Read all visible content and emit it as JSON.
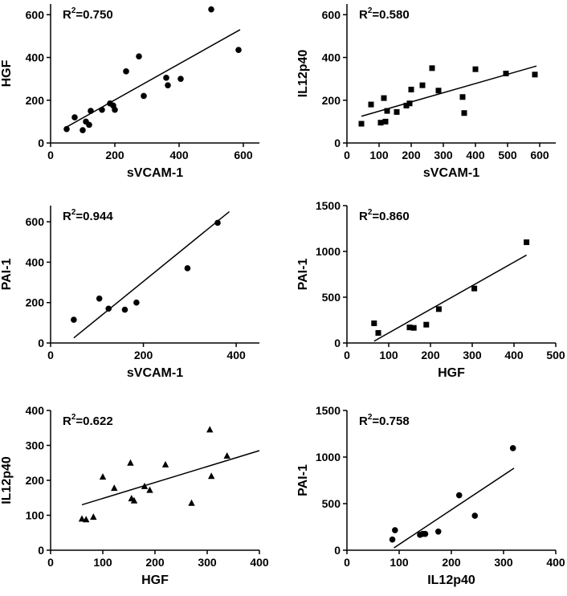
{
  "chart_data": [
    {
      "type": "scatter",
      "panel": "top-left",
      "xlabel": "sVCAM-1",
      "ylabel": "HGF",
      "r2_text": "R",
      "r2_sup": "2",
      "r2_value": "=0.750",
      "marker": "circle",
      "xlim": [
        0,
        650
      ],
      "ylim": [
        0,
        650
      ],
      "xticks": [
        0,
        200,
        400,
        600
      ],
      "yticks": [
        0,
        200,
        400,
        600
      ],
      "fit_line": {
        "x": [
          50,
          590
        ],
        "y": [
          75,
          530
        ]
      },
      "points": [
        {
          "x": 50,
          "y": 65
        },
        {
          "x": 75,
          "y": 120
        },
        {
          "x": 100,
          "y": 60
        },
        {
          "x": 110,
          "y": 100
        },
        {
          "x": 120,
          "y": 85
        },
        {
          "x": 125,
          "y": 150
        },
        {
          "x": 160,
          "y": 155
        },
        {
          "x": 185,
          "y": 185
        },
        {
          "x": 195,
          "y": 175
        },
        {
          "x": 200,
          "y": 155
        },
        {
          "x": 235,
          "y": 335
        },
        {
          "x": 275,
          "y": 405
        },
        {
          "x": 290,
          "y": 220
        },
        {
          "x": 360,
          "y": 305
        },
        {
          "x": 365,
          "y": 270
        },
        {
          "x": 405,
          "y": 300
        },
        {
          "x": 500,
          "y": 625
        },
        {
          "x": 585,
          "y": 435
        }
      ]
    },
    {
      "type": "scatter",
      "panel": "top-right",
      "xlabel": "sVCAM-1",
      "ylabel": "IL12p40",
      "r2_text": "R",
      "r2_sup": "2",
      "r2_value": "=0.580",
      "marker": "square",
      "xlim": [
        0,
        650
      ],
      "ylim": [
        0,
        650
      ],
      "xticks": [
        0,
        100,
        200,
        300,
        400,
        500,
        600
      ],
      "yticks": [
        0,
        200,
        400,
        600
      ],
      "fit_line": {
        "x": [
          45,
          590
        ],
        "y": [
          125,
          360
        ]
      },
      "points": [
        {
          "x": 45,
          "y": 90
        },
        {
          "x": 75,
          "y": 180
        },
        {
          "x": 105,
          "y": 95
        },
        {
          "x": 115,
          "y": 210
        },
        {
          "x": 120,
          "y": 100
        },
        {
          "x": 125,
          "y": 150
        },
        {
          "x": 155,
          "y": 145
        },
        {
          "x": 185,
          "y": 175
        },
        {
          "x": 195,
          "y": 185
        },
        {
          "x": 200,
          "y": 250
        },
        {
          "x": 235,
          "y": 270
        },
        {
          "x": 265,
          "y": 350
        },
        {
          "x": 285,
          "y": 245
        },
        {
          "x": 360,
          "y": 215
        },
        {
          "x": 365,
          "y": 140
        },
        {
          "x": 400,
          "y": 345
        },
        {
          "x": 495,
          "y": 325
        },
        {
          "x": 585,
          "y": 320
        }
      ]
    },
    {
      "type": "scatter",
      "panel": "middle-left",
      "xlabel": "sVCAM-1",
      "ylabel": "PAI-1",
      "r2_text": "R",
      "r2_sup": "2",
      "r2_value": "=0.944",
      "marker": "circle",
      "xlim": [
        0,
        450
      ],
      "ylim": [
        0,
        680
      ],
      "xticks": [
        0,
        200,
        400
      ],
      "yticks": [
        0,
        200,
        400,
        600
      ],
      "fit_line": {
        "x": [
          50,
          385
        ],
        "y": [
          25,
          650
        ]
      },
      "points": [
        {
          "x": 50,
          "y": 115
        },
        {
          "x": 105,
          "y": 220
        },
        {
          "x": 125,
          "y": 170
        },
        {
          "x": 160,
          "y": 165
        },
        {
          "x": 185,
          "y": 200
        },
        {
          "x": 295,
          "y": 370
        },
        {
          "x": 360,
          "y": 595
        }
      ]
    },
    {
      "type": "scatter",
      "panel": "middle-right",
      "xlabel": "HGF",
      "ylabel": "PAI-1",
      "r2_text": "R",
      "r2_sup": "2",
      "r2_value": "=0.860",
      "marker": "square",
      "xlim": [
        0,
        500
      ],
      "ylim": [
        0,
        1500
      ],
      "xticks": [
        0,
        100,
        200,
        300,
        400,
        500
      ],
      "yticks": [
        0,
        500,
        1000,
        1500
      ],
      "fit_line": {
        "x": [
          65,
          430
        ],
        "y": [
          20,
          960
        ]
      },
      "points": [
        {
          "x": 65,
          "y": 215
        },
        {
          "x": 75,
          "y": 110
        },
        {
          "x": 150,
          "y": 170
        },
        {
          "x": 160,
          "y": 165
        },
        {
          "x": 190,
          "y": 200
        },
        {
          "x": 220,
          "y": 370
        },
        {
          "x": 305,
          "y": 595
        },
        {
          "x": 430,
          "y": 1100
        }
      ]
    },
    {
      "type": "scatter",
      "panel": "bottom-left",
      "xlabel": "HGF",
      "ylabel": "IL12p40",
      "r2_text": "R",
      "r2_sup": "2",
      "r2_value": "=0.622",
      "marker": "triangle",
      "xlim": [
        0,
        400
      ],
      "ylim": [
        0,
        400
      ],
      "xticks": [
        0,
        100,
        200,
        300,
        400
      ],
      "yticks": [
        0,
        100,
        200,
        300,
        400
      ],
      "fit_line": {
        "x": [
          60,
          400
        ],
        "y": [
          130,
          285
        ]
      },
      "points": [
        {
          "x": 60,
          "y": 90
        },
        {
          "x": 68,
          "y": 88
        },
        {
          "x": 82,
          "y": 95
        },
        {
          "x": 100,
          "y": 210
        },
        {
          "x": 122,
          "y": 178
        },
        {
          "x": 153,
          "y": 250
        },
        {
          "x": 155,
          "y": 148
        },
        {
          "x": 160,
          "y": 142
        },
        {
          "x": 180,
          "y": 183
        },
        {
          "x": 190,
          "y": 172
        },
        {
          "x": 220,
          "y": 245
        },
        {
          "x": 270,
          "y": 135
        },
        {
          "x": 305,
          "y": 345
        },
        {
          "x": 308,
          "y": 212
        },
        {
          "x": 338,
          "y": 270
        }
      ]
    },
    {
      "type": "scatter",
      "panel": "bottom-right",
      "xlabel": "IL12p40",
      "ylabel": "PAI-1",
      "r2_text": "R",
      "r2_sup": "2",
      "r2_value": "=0.758",
      "marker": "circle",
      "xlim": [
        0,
        400
      ],
      "ylim": [
        0,
        1500
      ],
      "xticks": [
        0,
        100,
        200,
        300,
        400
      ],
      "yticks": [
        0,
        500,
        1000,
        1500
      ],
      "fit_line": {
        "x": [
          90,
          320
        ],
        "y": [
          25,
          880
        ]
      },
      "points": [
        {
          "x": 87,
          "y": 115
        },
        {
          "x": 92,
          "y": 215
        },
        {
          "x": 140,
          "y": 165
        },
        {
          "x": 145,
          "y": 175
        },
        {
          "x": 150,
          "y": 175
        },
        {
          "x": 175,
          "y": 200
        },
        {
          "x": 215,
          "y": 590
        },
        {
          "x": 245,
          "y": 370
        },
        {
          "x": 318,
          "y": 1095
        }
      ]
    }
  ]
}
